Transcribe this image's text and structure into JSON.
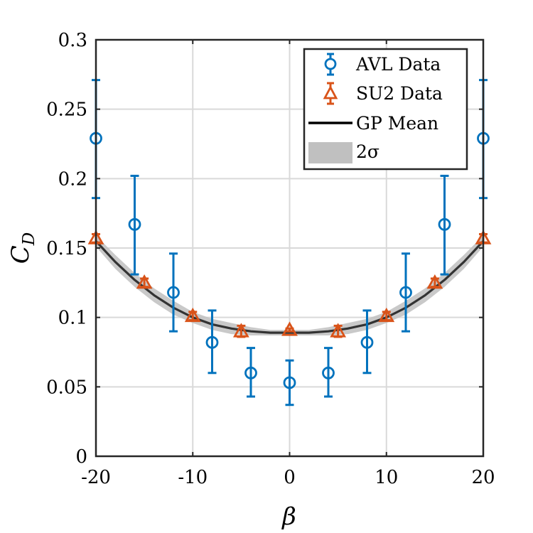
{
  "chart_data": {
    "type": "scatter",
    "xlabel": "β",
    "ylabel": "C",
    "ylabel_sub": "D",
    "xlim": [
      -20,
      20
    ],
    "ylim": [
      0,
      0.3
    ],
    "xticks": [
      -20,
      -10,
      0,
      10,
      20
    ],
    "xtick_labels": [
      "-20",
      "-10",
      "0",
      "10",
      "20"
    ],
    "yticks": [
      0,
      0.05,
      0.1,
      0.15,
      0.2,
      0.25,
      0.3
    ],
    "ytick_labels": [
      "0",
      "0.05",
      "0.1",
      "0.15",
      "0.2",
      "0.25",
      "0.3"
    ],
    "grid": true,
    "legend_position": "top-right",
    "series": [
      {
        "name": "AVL Data",
        "kind": "errorbar-circle",
        "color": "#0072BD",
        "x": [
          -20,
          -16,
          -12,
          -8,
          -4,
          0,
          4,
          8,
          12,
          16,
          20
        ],
        "y": [
          0.229,
          0.167,
          0.118,
          0.082,
          0.06,
          0.053,
          0.06,
          0.082,
          0.118,
          0.167,
          0.229
        ],
        "ylow": [
          0.186,
          0.131,
          0.09,
          0.06,
          0.043,
          0.037,
          0.043,
          0.06,
          0.09,
          0.131,
          0.186
        ],
        "yhigh": [
          0.271,
          0.202,
          0.146,
          0.105,
          0.078,
          0.069,
          0.078,
          0.105,
          0.146,
          0.202,
          0.271
        ]
      },
      {
        "name": "SU2 Data",
        "kind": "errorbar-triangle",
        "color": "#D95319",
        "x": [
          -20,
          -15,
          -10,
          -5,
          0,
          5,
          10,
          15,
          20
        ],
        "y": [
          0.157,
          0.125,
          0.101,
          0.09,
          0.091,
          0.09,
          0.101,
          0.125,
          0.157
        ],
        "ylow": [
          0.154,
          0.122,
          0.098,
          0.086,
          0.09,
          0.086,
          0.098,
          0.122,
          0.154
        ],
        "yhigh": [
          0.16,
          0.128,
          0.104,
          0.094,
          0.092,
          0.094,
          0.104,
          0.128,
          0.16
        ]
      },
      {
        "name": "GP Mean",
        "kind": "line",
        "color": "#000000",
        "x": [
          -20,
          -18,
          -16,
          -14,
          -12,
          -10,
          -8,
          -6,
          -4,
          -2,
          0,
          2,
          4,
          6,
          8,
          10,
          12,
          14,
          16,
          18,
          20
        ],
        "y": [
          0.155,
          0.14,
          0.127,
          0.116,
          0.107,
          0.1,
          0.095,
          0.092,
          0.09,
          0.089,
          0.089,
          0.089,
          0.09,
          0.092,
          0.095,
          0.1,
          0.107,
          0.116,
          0.127,
          0.14,
          0.155
        ]
      },
      {
        "name": "2σ",
        "kind": "band",
        "color": "#C0C0C0",
        "x": [
          -20,
          -18,
          -16,
          -14,
          -12,
          -10,
          -8,
          -6,
          -4,
          -2,
          0,
          2,
          4,
          6,
          8,
          10,
          12,
          14,
          16,
          18,
          20
        ],
        "ylow": [
          0.151,
          0.135,
          0.122,
          0.111,
          0.102,
          0.096,
          0.091,
          0.088,
          0.087,
          0.087,
          0.087,
          0.087,
          0.087,
          0.088,
          0.091,
          0.096,
          0.102,
          0.111,
          0.122,
          0.135,
          0.151
        ],
        "yhigh": [
          0.159,
          0.145,
          0.132,
          0.121,
          0.112,
          0.104,
          0.099,
          0.096,
          0.093,
          0.091,
          0.091,
          0.091,
          0.093,
          0.096,
          0.099,
          0.104,
          0.112,
          0.121,
          0.132,
          0.145,
          0.159
        ]
      }
    ]
  }
}
